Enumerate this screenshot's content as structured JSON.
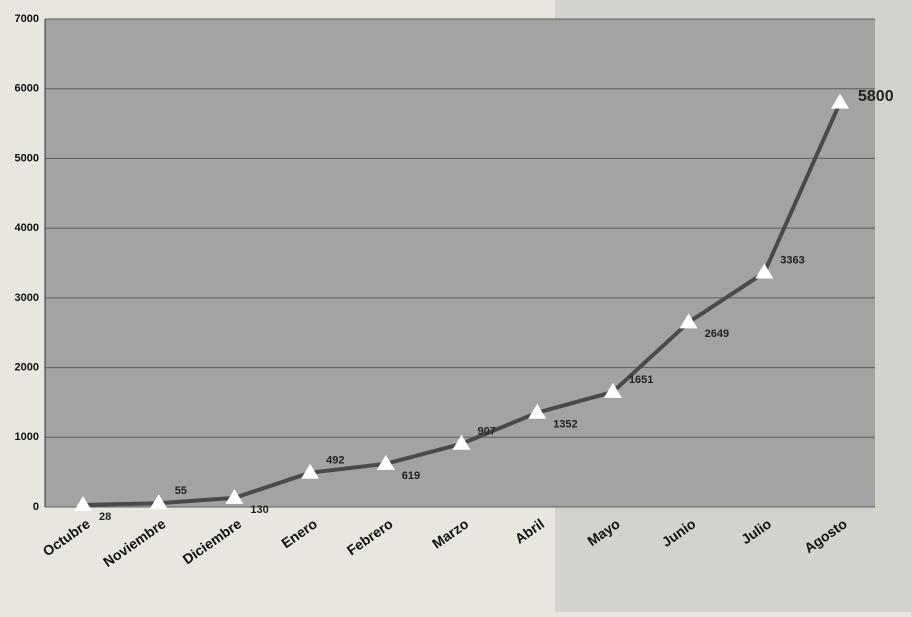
{
  "chart_data": {
    "type": "line",
    "categories": [
      "Octubre",
      "Noviembre",
      "Diciembre",
      "Enero",
      "Febrero",
      "Marzo",
      "Abril",
      "Mayo",
      "Junio",
      "Julio",
      "Agosto"
    ],
    "values": [
      28,
      55,
      130,
      492,
      619,
      907,
      1352,
      1651,
      2649,
      3363,
      5800
    ],
    "color": "#4a4a4a",
    "ylim": [
      0,
      7000
    ],
    "yticks": [
      0,
      1000,
      2000,
      3000,
      4000,
      5000,
      6000,
      7000
    ],
    "grid": true
  }
}
